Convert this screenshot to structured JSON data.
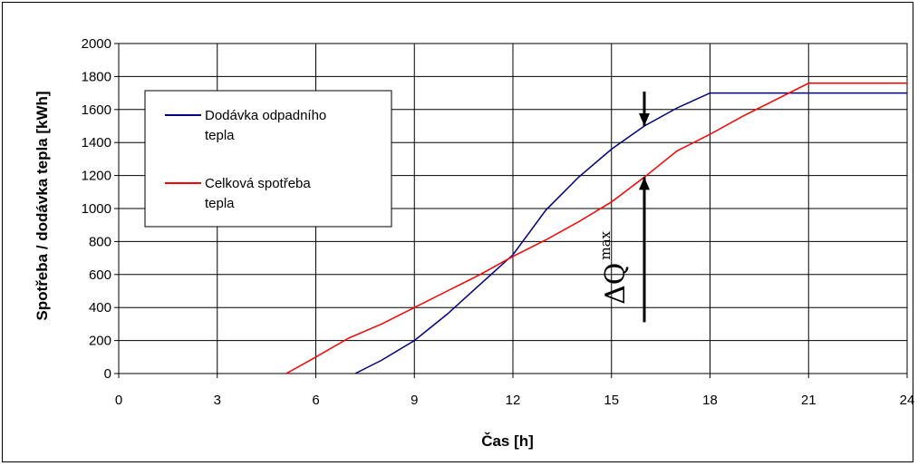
{
  "chart_data": {
    "type": "line",
    "xlabel": "Čas [h]",
    "ylabel": "Spotřeba / dodávka tepla [kWh]",
    "xlim": [
      0,
      24
    ],
    "ylim": [
      0,
      2000
    ],
    "x_ticks": [
      0,
      3,
      6,
      9,
      12,
      15,
      18,
      21,
      24
    ],
    "y_ticks": [
      0,
      200,
      400,
      600,
      800,
      1000,
      1200,
      1400,
      1600,
      1800,
      2000
    ],
    "grid": true,
    "legend_position": "top-left",
    "series": [
      {
        "name": "Dodávka odpadního tepla",
        "color": "#00007f",
        "points": [
          [
            7.2,
            0
          ],
          [
            8,
            80
          ],
          [
            9,
            200
          ],
          [
            10,
            360
          ],
          [
            11,
            540
          ],
          [
            12,
            720
          ],
          [
            13,
            990
          ],
          [
            14,
            1190
          ],
          [
            15,
            1360
          ],
          [
            16,
            1500
          ],
          [
            17,
            1610
          ],
          [
            18,
            1700
          ],
          [
            24,
            1700
          ]
        ]
      },
      {
        "name": "Celková spotřeba tepla",
        "color": "#ff0000",
        "points": [
          [
            5.1,
            0
          ],
          [
            6,
            100
          ],
          [
            7,
            215
          ],
          [
            8,
            300
          ],
          [
            9,
            400
          ],
          [
            10,
            500
          ],
          [
            11,
            600
          ],
          [
            12,
            710
          ],
          [
            13,
            810
          ],
          [
            14,
            920
          ],
          [
            15,
            1040
          ],
          [
            16,
            1190
          ],
          [
            17,
            1350
          ],
          [
            18,
            1450
          ],
          [
            19,
            1560
          ],
          [
            20,
            1660
          ],
          [
            21,
            1760
          ],
          [
            24,
            1760
          ]
        ]
      }
    ],
    "annotation": {
      "label_main": "ΔQ",
      "label_sub": "max",
      "x": 16,
      "y_top": 1500,
      "y_bottom": 1190
    }
  }
}
